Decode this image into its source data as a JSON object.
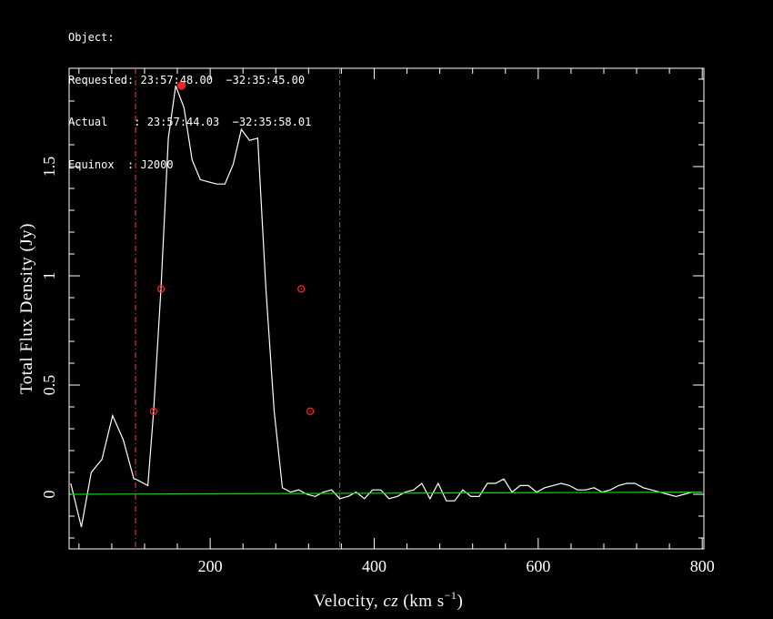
{
  "header": {
    "object_line": "Object:",
    "requested_line": "Requested: 23:57:48.00  −32:35:45.00",
    "actual_line": "Actual    : 23:57:44.03  −32:35:58.01",
    "equinox_line": "Equinox  : J2000"
  },
  "chart_data": {
    "type": "line",
    "xlabel": "Velocity, cz (km s⁻¹)",
    "xlabel_parts": {
      "main": "Velocity, ",
      "italic": "cz",
      "unit": "(km s",
      "sup": "−1",
      "close": ")"
    },
    "ylabel": "Total Flux Density (Jy)",
    "xlim": [
      28,
      802
    ],
    "ylim": [
      -0.25,
      1.95
    ],
    "x_ticks": [
      200,
      400,
      600,
      800
    ],
    "x_tick_labels": [
      "200",
      "400",
      "600",
      "800"
    ],
    "y_ticks": [
      0,
      0.5,
      1,
      1.5
    ],
    "y_tick_labels": [
      "0",
      "0.5",
      "1",
      "1.5"
    ],
    "grid": false,
    "colors": {
      "spectrum": "#ffffff",
      "baseline": "#00dd00",
      "markers": "#ff2020",
      "window": "#ff4040",
      "axes": "#ffffff"
    },
    "series": [
      {
        "role": "spectrum",
        "x": [
          30,
          43,
          55,
          68,
          81,
          94,
          107,
          109,
          124,
          131,
          140,
          149,
          158,
          168,
          178,
          188,
          198,
          208,
          218,
          228,
          238,
          248,
          258,
          268,
          278,
          288,
          298,
          308,
          318,
          328,
          338,
          348,
          358,
          368,
          378,
          388,
          398,
          408,
          418,
          428,
          438,
          448,
          458,
          468,
          478,
          488,
          498,
          508,
          518,
          528,
          538,
          548,
          558,
          568,
          578,
          588,
          598,
          608,
          618,
          628,
          638,
          648,
          658,
          668,
          678,
          688,
          698,
          708,
          718,
          728,
          738,
          748,
          758,
          768,
          778,
          788,
          798
        ],
        "y": [
          0.05,
          -0.15,
          0.1,
          0.16,
          0.36,
          0.25,
          0.07,
          0.07,
          0.04,
          0.38,
          0.94,
          1.63,
          1.87,
          1.77,
          1.53,
          1.44,
          1.43,
          1.42,
          1.42,
          1.51,
          1.67,
          1.62,
          1.63,
          0.94,
          0.38,
          0.03,
          0.01,
          0.02,
          0.0,
          -0.01,
          0.01,
          0.02,
          -0.02,
          -0.01,
          0.01,
          -0.02,
          0.02,
          0.02,
          -0.02,
          -0.01,
          0.01,
          0.02,
          0.05,
          -0.02,
          0.05,
          -0.03,
          -0.03,
          0.02,
          -0.01,
          -0.01,
          0.05,
          0.05,
          0.07,
          0.01,
          0.04,
          0.04,
          0.01,
          0.03,
          0.04,
          0.05,
          0.04,
          0.02,
          0.02,
          0.03,
          0.01,
          0.02,
          0.04,
          0.05,
          0.05,
          0.03,
          0.02,
          0.01,
          0.0,
          -0.01,
          0.0,
          0.01,
          0.01
        ]
      },
      {
        "role": "baseline",
        "x": [
          30,
          800
        ],
        "y": [
          0.0,
          0.01
        ]
      }
    ],
    "markers": [
      {
        "x": 131,
        "y": 0.38,
        "kind": "open"
      },
      {
        "x": 140,
        "y": 0.94,
        "kind": "open"
      },
      {
        "x": 165,
        "y": 1.87,
        "kind": "filled"
      },
      {
        "x": 311,
        "y": 0.94,
        "kind": "open"
      },
      {
        "x": 322,
        "y": 0.38,
        "kind": "open"
      }
    ],
    "vertical_lines": [
      109,
      358
    ]
  }
}
